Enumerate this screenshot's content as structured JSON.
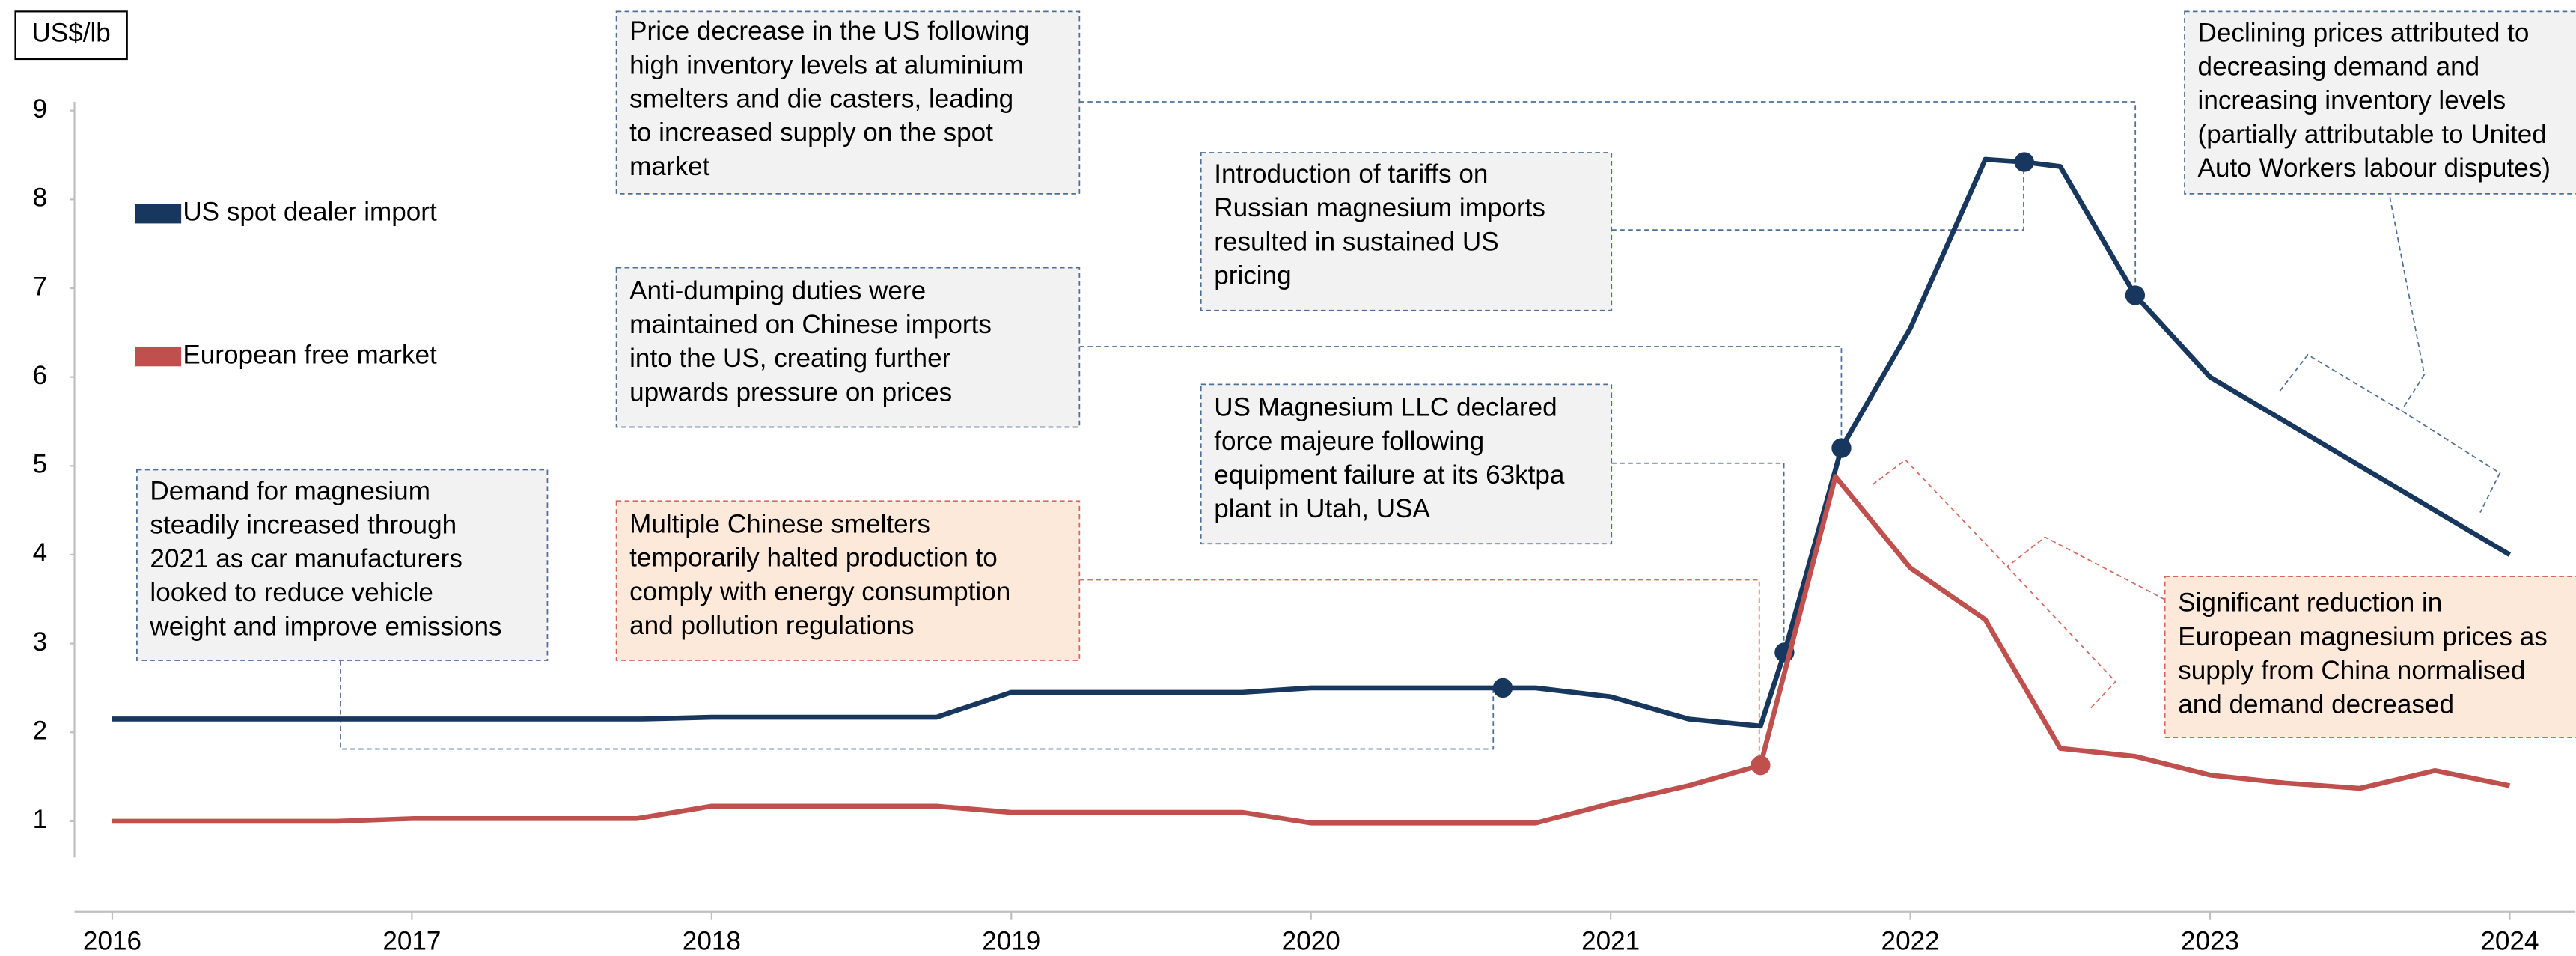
{
  "chart_data": {
    "type": "line",
    "unit_label": "US$/lb",
    "xlim": [
      2015.87,
      2024.13
    ],
    "xticks": [
      2016,
      2017,
      2018,
      2019,
      2020,
      2021,
      2022,
      2023,
      2024
    ],
    "ylim": [
      0,
      9.2
    ],
    "yticks": [
      1,
      2,
      3,
      4,
      5,
      6,
      7,
      8,
      9
    ],
    "series": [
      {
        "name": "US spot dealer import",
        "color": "#17375e",
        "x": [
          2016.0,
          2017.77,
          2018.0,
          2018.75,
          2019.0,
          2019.77,
          2020.0,
          2020.64,
          2020.75,
          2021.0,
          2021.26,
          2021.5,
          2021.58,
          2021.77,
          2022.0,
          2022.25,
          2022.38,
          2022.5,
          2022.75,
          2023.0,
          2024.0
        ],
        "values": [
          2.15,
          2.15,
          2.17,
          2.17,
          2.45,
          2.45,
          2.5,
          2.5,
          2.5,
          2.4,
          2.15,
          2.07,
          2.9,
          5.2,
          6.55,
          8.45,
          8.42,
          8.37,
          6.92,
          6.0,
          4.0
        ],
        "markers": [
          7,
          12,
          13,
          16,
          18
        ]
      },
      {
        "name": "European free market",
        "color": "#c0504d",
        "x": [
          2016.0,
          2016.75,
          2017.0,
          2017.75,
          2018.0,
          2018.75,
          2019.0,
          2019.77,
          2020.0,
          2020.75,
          2021.0,
          2021.26,
          2021.5,
          2021.75,
          2022.0,
          2022.25,
          2022.5,
          2022.75,
          2023.0,
          2023.25,
          2023.5,
          2023.75,
          2024.0
        ],
        "values": [
          1.0,
          1.0,
          1.03,
          1.03,
          1.17,
          1.17,
          1.1,
          1.1,
          0.98,
          0.98,
          1.2,
          1.4,
          1.63,
          4.88,
          3.85,
          3.27,
          1.82,
          1.73,
          1.52,
          1.43,
          1.37,
          1.57,
          1.4
        ],
        "markers": [
          12
        ]
      }
    ],
    "annotations": [
      {
        "lines": [
          "Price decrease in the US following",
          "high inventory levels at aluminium",
          "smelters and die casters, leading",
          "to increased supply on the spot",
          "market"
        ]
      },
      {
        "lines": [
          "Introduction of tariffs on",
          "Russian magnesium imports",
          "resulted in sustained US",
          "pricing"
        ]
      },
      {
        "lines": [
          "Declining prices attributed to",
          "decreasing demand and",
          "increasing inventory levels",
          "(partially attributable to United",
          "Auto Workers labour disputes)"
        ]
      },
      {
        "lines": [
          "Anti-dumping duties were",
          "maintained on Chinese imports",
          "into the US, creating further",
          "upwards pressure on prices"
        ]
      },
      {
        "lines": [
          "US Magnesium LLC declared",
          "force majeure following",
          "equipment failure at its 63ktpa",
          "plant in Utah, USA"
        ]
      },
      {
        "lines": [
          "Demand for magnesium",
          "steadily increased through",
          "2021 as car manufacturers",
          "looked to reduce vehicle",
          "weight and improve emissions"
        ]
      },
      {
        "lines": [
          "Multiple Chinese smelters",
          "temporarily halted production to",
          "comply with energy consumption",
          "and pollution regulations"
        ]
      },
      {
        "lines": [
          "Significant reduction in",
          "European magnesium prices as",
          "supply from China normalised",
          "and demand decreased"
        ]
      }
    ]
  }
}
